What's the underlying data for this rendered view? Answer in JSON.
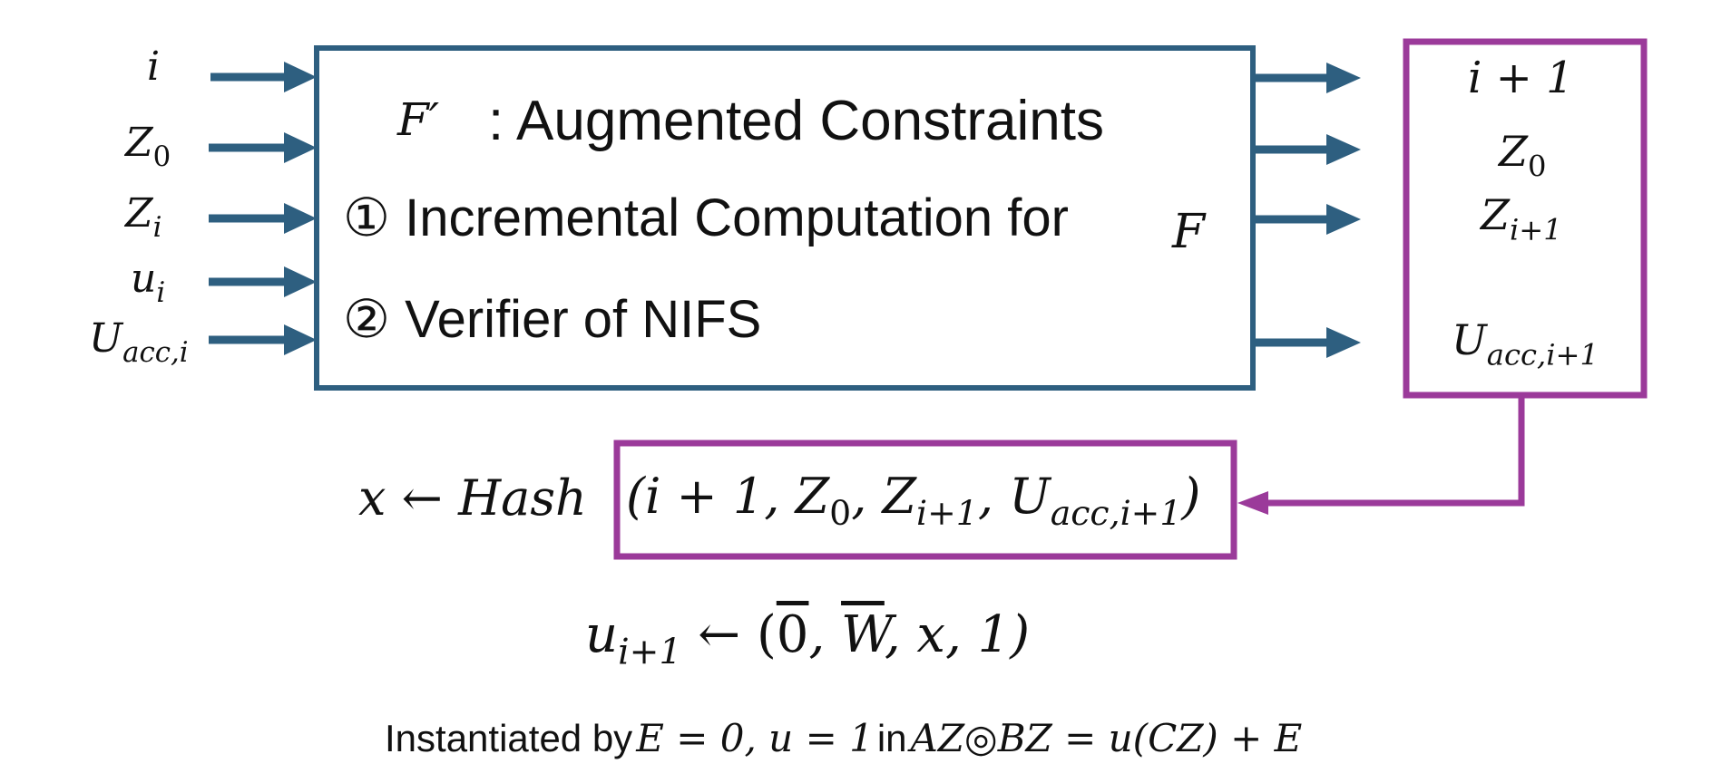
{
  "colors": {
    "main_box": "#2e5f80",
    "accent_box": "#9b3a9a",
    "text": "#111111"
  },
  "inputs": [
    {
      "symbol": "i",
      "subscript": ""
    },
    {
      "symbol": "Z",
      "subscript": "0"
    },
    {
      "symbol": "Z",
      "subscript": "i"
    },
    {
      "symbol": "u",
      "subscript": "i"
    },
    {
      "symbol": "U",
      "subscript": "acc,i"
    }
  ],
  "function_box": {
    "symbol": "F′",
    "title": ": Augmented Constraints",
    "step1_marker": "①",
    "step1_text": "Incremental Computation for",
    "step1_symbol": "F",
    "step2_marker": "②",
    "step2_text": "Verifier of NIFS"
  },
  "outputs": [
    {
      "symbol": "i + 1",
      "subscript": ""
    },
    {
      "symbol": "Z",
      "subscript": "0"
    },
    {
      "symbol": "Z",
      "subscript": "i+1"
    },
    {
      "symbol": "U",
      "subscript": "acc,i+1"
    }
  ],
  "hash_line": {
    "lhs": "x",
    "arrow": "←",
    "func": "Hash",
    "args_open": "(i + 1, Z",
    "args_z0_sub": "0",
    "args_mid": ", Z",
    "args_zi1_sub": "i+1",
    "args_u": ", U",
    "args_u_sub": "acc,i+1",
    "args_close": ")"
  },
  "u_line": {
    "lhs": "u",
    "lhs_sub": "i+1",
    "arrow": "←",
    "rhs_open": "(",
    "zero": "0",
    "comma1": ", ",
    "w": "W",
    "rest": ", x, 1)"
  },
  "footer": {
    "prefix": "Instantiated by",
    "cond": "E = 0, u = 1",
    "in": "in",
    "equation": "AZ◎BZ = u(CZ) + E"
  }
}
